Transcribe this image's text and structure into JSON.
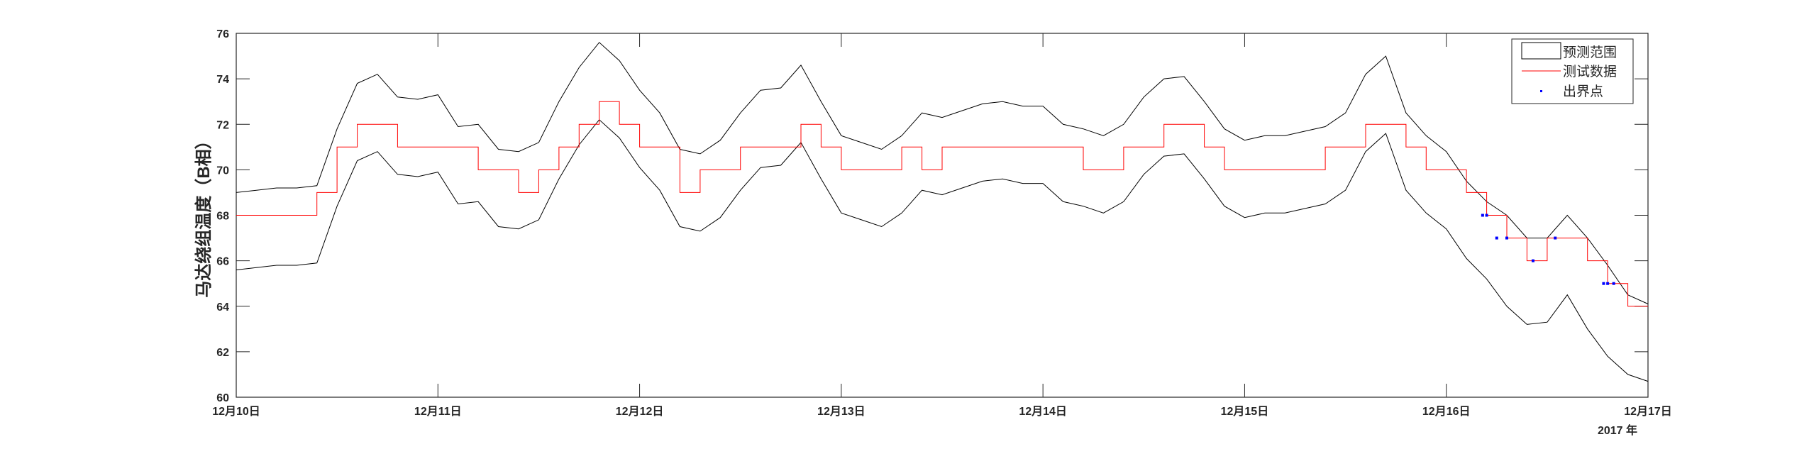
{
  "chart_data": {
    "type": "line",
    "ylabel": "马达绕组温度（B相）",
    "ylim": [
      60,
      76
    ],
    "yticks": [
      "60",
      "62",
      "64",
      "66",
      "68",
      "70",
      "72",
      "74",
      "76"
    ],
    "xticks": [
      "12月10日",
      "12月11日",
      "12月12日",
      "12月13日",
      "12月14日",
      "12月15日",
      "12月16日",
      "12月17日"
    ],
    "xyear": "2017 年",
    "xlim": [
      "2017-12-10",
      "2017-12-17"
    ],
    "grid": false,
    "legend_position": "top-right",
    "x_days_from_start_note_units": "days",
    "x": [
      0,
      0.1,
      0.2,
      0.3,
      0.4,
      0.5,
      0.6,
      0.7,
      0.8,
      0.9,
      1,
      1.1,
      1.2,
      1.3,
      1.4,
      1.5,
      1.6,
      1.7,
      1.8,
      1.9,
      2,
      2.1,
      2.2,
      2.3,
      2.4,
      2.5,
      2.6,
      2.7,
      2.8,
      2.9,
      3,
      3.1,
      3.2,
      3.3,
      3.4,
      3.5,
      3.6,
      3.7,
      3.8,
      3.9,
      4,
      4.1,
      4.2,
      4.3,
      4.4,
      4.5,
      4.6,
      4.7,
      4.8,
      4.9,
      5,
      5.1,
      5.2,
      5.3,
      5.4,
      5.5,
      5.6,
      5.7,
      5.8,
      5.9,
      6,
      6.1,
      6.2,
      6.3,
      6.4,
      6.5,
      6.6,
      6.7,
      6.8,
      6.9,
      7
    ],
    "series": [
      {
        "name": "预测范围",
        "color": "#000000",
        "kind": "band",
        "upper": [
          69.0,
          69.1,
          69.2,
          69.2,
          69.3,
          71.8,
          73.8,
          74.2,
          73.2,
          73.1,
          73.3,
          71.9,
          72.0,
          70.9,
          70.8,
          71.2,
          73.0,
          74.5,
          75.6,
          74.8,
          73.5,
          72.5,
          70.9,
          70.7,
          71.3,
          72.5,
          73.5,
          73.6,
          74.6,
          73.0,
          71.5,
          71.2,
          70.9,
          71.5,
          72.5,
          72.3,
          72.6,
          72.9,
          73.0,
          72.8,
          72.8,
          72.0,
          71.8,
          71.5,
          72.0,
          73.2,
          74.0,
          74.1,
          73.0,
          71.8,
          71.3,
          71.5,
          71.5,
          71.7,
          71.9,
          72.5,
          74.2,
          75.0,
          72.5,
          71.5,
          70.8,
          69.5,
          68.6,
          68.0,
          67.0,
          67.0,
          68.0,
          67.0,
          65.8,
          64.5,
          64.1
        ],
        "lower": [
          65.6,
          65.7,
          65.8,
          65.8,
          65.9,
          68.4,
          70.4,
          70.8,
          69.8,
          69.7,
          69.9,
          68.5,
          68.6,
          67.5,
          67.4,
          67.8,
          69.6,
          71.1,
          72.2,
          71.4,
          70.1,
          69.1,
          67.5,
          67.3,
          67.9,
          69.1,
          70.1,
          70.2,
          71.2,
          69.6,
          68.1,
          67.8,
          67.5,
          68.1,
          69.1,
          68.9,
          69.2,
          69.5,
          69.6,
          69.4,
          69.4,
          68.6,
          68.4,
          68.1,
          68.6,
          69.8,
          70.6,
          70.7,
          69.6,
          68.4,
          67.9,
          68.1,
          68.1,
          68.3,
          68.5,
          69.1,
          70.8,
          71.6,
          69.1,
          68.1,
          67.4,
          66.1,
          65.2,
          64.0,
          63.2,
          63.3,
          64.5,
          63.0,
          61.8,
          61.0,
          60.7
        ]
      },
      {
        "name": "测试数据",
        "color": "#ff0000",
        "kind": "line",
        "values": [
          68,
          68,
          68,
          68,
          69,
          71,
          72,
          72,
          71,
          71,
          71,
          71,
          70,
          70,
          69,
          70,
          71,
          72,
          73,
          72,
          71,
          71,
          69,
          70,
          70,
          71,
          71,
          71,
          72,
          71,
          70,
          70,
          70,
          71,
          70,
          71,
          71,
          71,
          71,
          71,
          71,
          71,
          70,
          70,
          71,
          71,
          72,
          72,
          71,
          70,
          70,
          70,
          70,
          70,
          71,
          71,
          72,
          72,
          71,
          70,
          70,
          69,
          68,
          67,
          66,
          67,
          67,
          66,
          65,
          64,
          64
        ]
      },
      {
        "name": "出界点",
        "color": "#0000ff",
        "kind": "points",
        "x": [
          6.18,
          6.2,
          6.25,
          6.3,
          6.43,
          6.54,
          6.78,
          6.8,
          6.83
        ],
        "values": [
          68.0,
          68.0,
          67.0,
          67.0,
          66.0,
          67.0,
          65.0,
          65.0,
          65.0
        ]
      }
    ]
  }
}
